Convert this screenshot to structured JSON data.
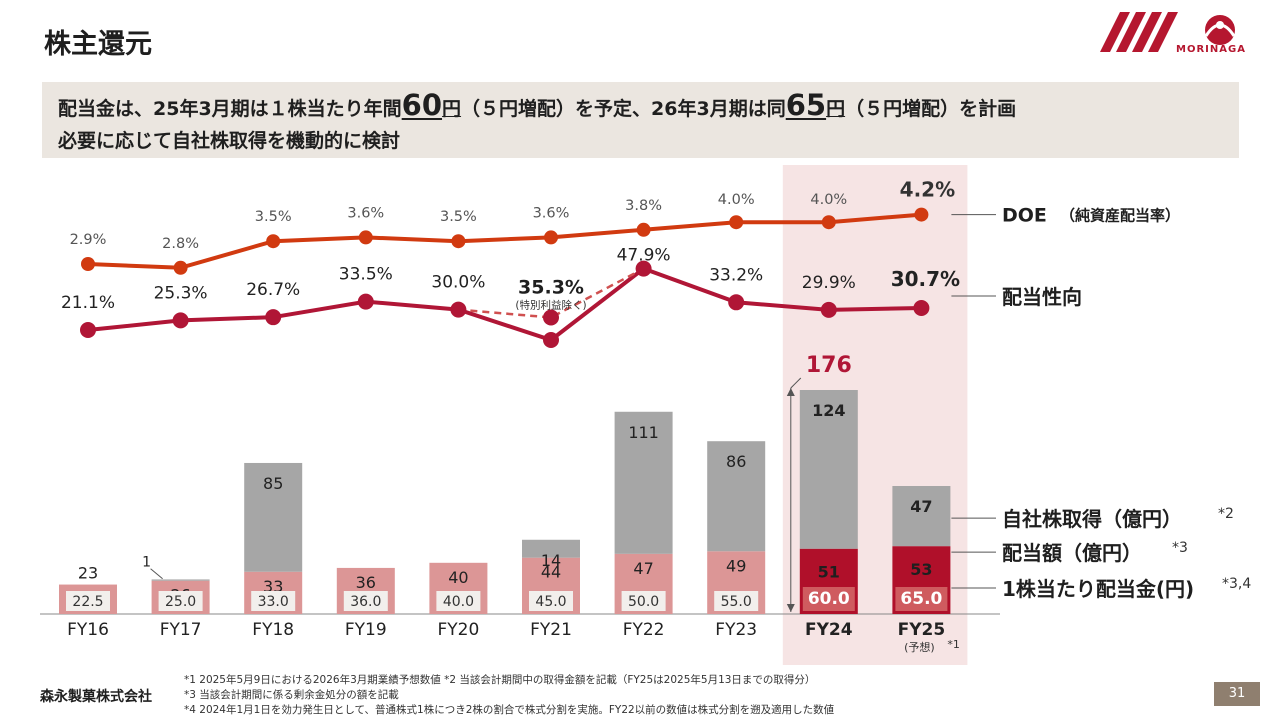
{
  "page": {
    "title": "株主還元",
    "logo_text": "MORINAGA",
    "company": "森永製菓株式会社",
    "page_number": "31"
  },
  "summary": {
    "line1_a": "配当金は、25年3月期は１株当たり年間",
    "line1_b": "60",
    "line1_c": "円",
    "line1_d": "（５円増配）を予定、26年3月期は同",
    "line1_e": "65",
    "line1_f": "円",
    "line1_g": "（５円増配）を計画",
    "line2": "必要に応じて自社株取得を機動的に検討"
  },
  "notes": [
    "*1  2025年5月9日における2026年3月期業績予想数値  *2  当該会計期間中の取得金額を記載（FY25は2025年5月13日までの取得分）",
    "*3  当該会計期間に係る剰余金処分の額を記載",
    "*4  2024年1月1日を効力発生日として、普通株式1株につき2株の割合で株式分割を実施。FY22以前の数値は株式分割を遡及適用した数値"
  ],
  "chart_data": {
    "type": "bar",
    "categories": [
      "FY16",
      "FY17",
      "FY18",
      "FY19",
      "FY20",
      "FY21",
      "FY22",
      "FY23",
      "FY24",
      "FY25"
    ],
    "forecast_label": "(予想)",
    "forecast_mark": "*1",
    "highlight_categories": [
      "FY24",
      "FY25"
    ],
    "series": [
      {
        "name": "配当額（億円）",
        "note": "*3",
        "values": [
          23,
          26,
          33,
          36,
          40,
          44,
          47,
          49,
          51,
          53
        ]
      },
      {
        "name": "自社株取得（億円）",
        "note": "*2",
        "values": [
          null,
          1,
          85,
          null,
          null,
          14,
          111,
          86,
          124,
          47
        ]
      },
      {
        "name": "1株当たり配当金(円)",
        "note": "*3,4",
        "values": [
          22.5,
          25.0,
          33.0,
          36.0,
          40.0,
          45.0,
          50.0,
          55.0,
          60.0,
          65.0
        ]
      }
    ],
    "total_annotation": {
      "category": "FY24",
      "value": "176"
    },
    "lines": [
      {
        "name": "DOE",
        "name_suffix": "（純資産配当率）",
        "values": [
          2.9,
          2.8,
          3.5,
          3.6,
          3.5,
          3.6,
          3.8,
          4.0,
          4.0,
          4.2
        ],
        "labels": [
          "2.9%",
          "2.8%",
          "3.5%",
          "3.6%",
          "3.5%",
          "3.6%",
          "3.8%",
          "4.0%",
          "4.0%",
          "4.2%"
        ]
      },
      {
        "name": "配当性向",
        "values": [
          21.1,
          25.3,
          26.7,
          33.5,
          30.0,
          null,
          47.9,
          33.2,
          29.9,
          30.7
        ],
        "labels": [
          "21.1%",
          "25.3%",
          "26.7%",
          "33.5%",
          "30.0%",
          "",
          "47.9%",
          "33.2%",
          "29.9%",
          "30.7%"
        ]
      }
    ],
    "special_point": {
      "category": "FY21",
      "value": 35.3,
      "label": "35.3%",
      "sublabel": "(特別利益除く)"
    },
    "colors": {
      "doe": "#d13a10",
      "payout": "#b01636",
      "dividend": "#dc9696",
      "dividend_highlight": "#b0102a",
      "buyback": "#a6a6a6",
      "per_share_box": "#f2efec",
      "per_share_box_highlight": "#cf5b5f",
      "highlight_bg": "#f6e4e4"
    }
  }
}
